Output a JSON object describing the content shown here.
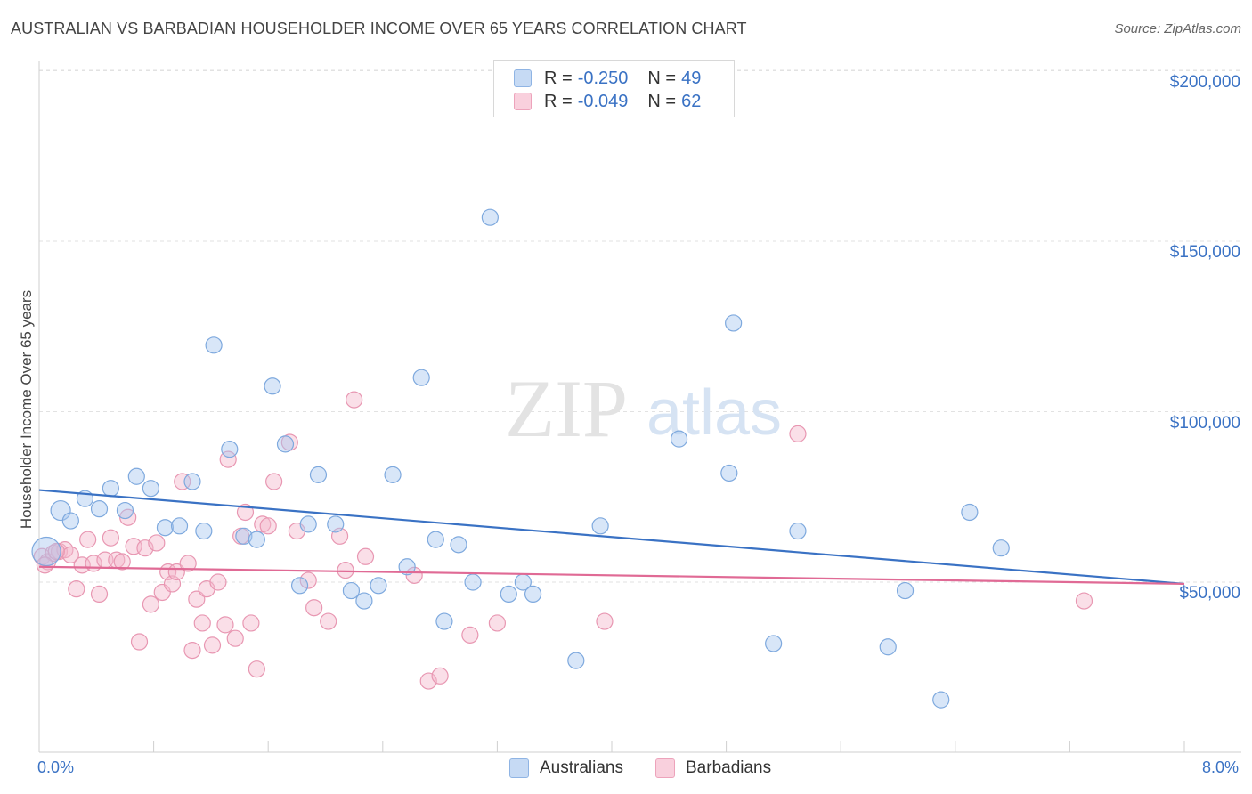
{
  "title": "AUSTRALIAN VS BARBADIAN HOUSEHOLDER INCOME OVER 65 YEARS CORRELATION CHART",
  "source": "Source: ZipAtlas.com",
  "watermark": {
    "zip": "ZIP",
    "atlas": "atlas"
  },
  "legend_box": {
    "rows": [
      {
        "r_label": "R =",
        "r_value": "-0.250",
        "n_label": "N =",
        "n_value": "49",
        "color": "#a8c8ef"
      },
      {
        "r_label": "R =",
        "r_value": "-0.049",
        "n_label": "N =",
        "n_value": "62",
        "color": "#f4b8cb"
      }
    ]
  },
  "bottom_legend": [
    {
      "label": "Australians",
      "color": "#a8c8ef"
    },
    {
      "label": "Barbadians",
      "color": "#f4b8cb"
    }
  ],
  "colors": {
    "blue": "#3a72c4",
    "pink": "#e06a95",
    "blue_fill": "#a8c8ef",
    "pink_fill": "#f4b8cb"
  },
  "chart_data": {
    "type": "scatter",
    "title": "AUSTRALIAN VS BARBADIAN HOUSEHOLDER INCOME OVER 65 YEARS CORRELATION CHART",
    "xlabel": "",
    "ylabel": "Householder Income Over 65 years",
    "xlim": [
      0,
      8
    ],
    "ylim": [
      0,
      210000
    ],
    "x_tick_labels": [
      "0.0%",
      "8.0%"
    ],
    "y_ticks": [
      50000,
      100000,
      150000,
      200000
    ],
    "y_tick_labels": [
      "$50,000",
      "$100,000",
      "$150,000",
      "$200,000"
    ],
    "grid": true,
    "series": [
      {
        "name": "Australians",
        "trend": [
          [
            0,
            77000
          ],
          [
            8,
            49500
          ]
        ],
        "points": [
          [
            0.05,
            59000
          ],
          [
            0.15,
            71000
          ],
          [
            0.22,
            68000
          ],
          [
            0.32,
            74500
          ],
          [
            0.42,
            71500
          ],
          [
            0.5,
            77500
          ],
          [
            0.6,
            71000
          ],
          [
            0.68,
            81000
          ],
          [
            0.78,
            77500
          ],
          [
            0.88,
            66000
          ],
          [
            0.98,
            66500
          ],
          [
            1.07,
            79500
          ],
          [
            1.15,
            65000
          ],
          [
            1.22,
            119500
          ],
          [
            1.33,
            89000
          ],
          [
            1.43,
            63500
          ],
          [
            1.52,
            62500
          ],
          [
            1.63,
            107500
          ],
          [
            1.72,
            90500
          ],
          [
            1.82,
            49000
          ],
          [
            1.88,
            67000
          ],
          [
            1.95,
            81500
          ],
          [
            2.07,
            67000
          ],
          [
            2.18,
            47500
          ],
          [
            2.27,
            44500
          ],
          [
            2.37,
            49000
          ],
          [
            2.47,
            81500
          ],
          [
            2.57,
            54500
          ],
          [
            2.67,
            110000
          ],
          [
            2.77,
            62500
          ],
          [
            2.83,
            38500
          ],
          [
            2.93,
            61000
          ],
          [
            3.03,
            50000
          ],
          [
            3.15,
            157000
          ],
          [
            3.28,
            46500
          ],
          [
            3.38,
            50000
          ],
          [
            3.45,
            46500
          ],
          [
            3.75,
            27000
          ],
          [
            3.92,
            66500
          ],
          [
            4.47,
            92000
          ],
          [
            4.82,
            82000
          ],
          [
            4.85,
            126000
          ],
          [
            5.13,
            32000
          ],
          [
            5.3,
            65000
          ],
          [
            5.93,
            31000
          ],
          [
            6.05,
            47500
          ],
          [
            6.3,
            15500
          ],
          [
            6.5,
            70500
          ],
          [
            6.72,
            60000
          ]
        ]
      },
      {
        "name": "Barbadians",
        "trend": [
          [
            0,
            54500
          ],
          [
            8,
            49500
          ]
        ],
        "points": [
          [
            0.02,
            57500
          ],
          [
            0.06,
            56000
          ],
          [
            0.1,
            58500
          ],
          [
            0.14,
            59000
          ],
          [
            0.18,
            59500
          ],
          [
            0.22,
            58000
          ],
          [
            0.26,
            48000
          ],
          [
            0.3,
            55000
          ],
          [
            0.34,
            62500
          ],
          [
            0.38,
            55500
          ],
          [
            0.42,
            46500
          ],
          [
            0.46,
            56500
          ],
          [
            0.5,
            63000
          ],
          [
            0.54,
            56500
          ],
          [
            0.58,
            56000
          ],
          [
            0.62,
            69000
          ],
          [
            0.66,
            60500
          ],
          [
            0.7,
            32500
          ],
          [
            0.74,
            60000
          ],
          [
            0.78,
            43500
          ],
          [
            0.82,
            61500
          ],
          [
            0.86,
            47000
          ],
          [
            0.9,
            53000
          ],
          [
            0.93,
            49500
          ],
          [
            0.96,
            53000
          ],
          [
            1.0,
            79500
          ],
          [
            1.04,
            55500
          ],
          [
            1.07,
            30000
          ],
          [
            1.1,
            45000
          ],
          [
            1.14,
            38000
          ],
          [
            1.17,
            48000
          ],
          [
            1.21,
            31500
          ],
          [
            1.25,
            50000
          ],
          [
            1.3,
            37500
          ],
          [
            1.32,
            86000
          ],
          [
            1.37,
            33500
          ],
          [
            1.41,
            63500
          ],
          [
            1.44,
            70500
          ],
          [
            1.48,
            38000
          ],
          [
            1.52,
            24500
          ],
          [
            1.56,
            67000
          ],
          [
            1.6,
            66500
          ],
          [
            1.64,
            79500
          ],
          [
            1.75,
            91000
          ],
          [
            1.8,
            65000
          ],
          [
            1.88,
            50500
          ],
          [
            1.92,
            42500
          ],
          [
            2.02,
            38500
          ],
          [
            2.1,
            63500
          ],
          [
            2.14,
            53500
          ],
          [
            2.2,
            103500
          ],
          [
            2.28,
            57500
          ],
          [
            2.62,
            52000
          ],
          [
            2.72,
            21000
          ],
          [
            2.8,
            22500
          ],
          [
            3.01,
            34500
          ],
          [
            3.2,
            38000
          ],
          [
            3.95,
            38500
          ],
          [
            5.3,
            93500
          ],
          [
            7.3,
            44500
          ],
          [
            0.04,
            55000
          ],
          [
            0.12,
            59000
          ]
        ]
      }
    ]
  }
}
